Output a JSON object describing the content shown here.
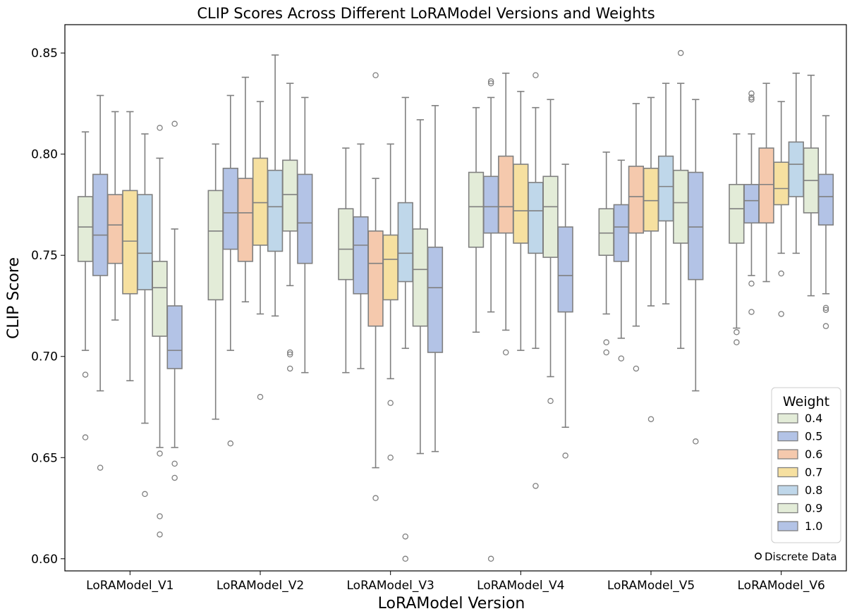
{
  "chart_data": {
    "type": "boxplot",
    "title": "CLIP Scores Across Different LoRAModel Versions and Weights",
    "xlabel": "LoRAModel Version",
    "ylabel": "CLIP Score",
    "ylim": [
      0.594,
      0.864
    ],
    "yticks": [
      0.6,
      0.65,
      0.7,
      0.75,
      0.8,
      0.85
    ],
    "ytick_labels": [
      "0.60",
      "0.65",
      "0.70",
      "0.75",
      "0.80",
      "0.85"
    ],
    "categories": [
      "LoRAModel_V1",
      "LoRAModel_V2",
      "LoRAModel_V3",
      "LoRAModel_V4",
      "LoRAModel_V5",
      "LoRAModel_V6"
    ],
    "legend": {
      "title": "Weight",
      "position": "bottom-right",
      "labels": [
        "0.4",
        "0.5",
        "0.6",
        "0.7",
        "0.8",
        "0.9",
        "1.0"
      ],
      "colors": [
        "#e3ecd8",
        "#b3c3e6",
        "#f5c9ad",
        "#f6e0a0",
        "#bfd7ea",
        "#e3ecd8",
        "#b3c3e6"
      ]
    },
    "annotation": "Discrete Data",
    "edge_color": "#808080",
    "series": [
      {
        "name": "0.4",
        "boxes": [
          {
            "whislo": 0.703,
            "q1": 0.747,
            "med": 0.764,
            "q3": 0.779,
            "whishi": 0.811,
            "fliers": [
              0.691,
              0.66
            ]
          },
          {
            "whislo": 0.669,
            "q1": 0.728,
            "med": 0.762,
            "q3": 0.782,
            "whishi": 0.805,
            "fliers": []
          },
          {
            "whislo": 0.692,
            "q1": 0.738,
            "med": 0.753,
            "q3": 0.773,
            "whishi": 0.803,
            "fliers": []
          },
          {
            "whislo": 0.712,
            "q1": 0.754,
            "med": 0.774,
            "q3": 0.791,
            "whishi": 0.823,
            "fliers": []
          },
          {
            "whislo": 0.721,
            "q1": 0.75,
            "med": 0.761,
            "q3": 0.773,
            "whishi": 0.801,
            "fliers": [
              0.707,
              0.702
            ]
          },
          {
            "whislo": 0.714,
            "q1": 0.756,
            "med": 0.773,
            "q3": 0.785,
            "whishi": 0.81,
            "fliers": [
              0.712,
              0.707
            ]
          }
        ]
      },
      {
        "name": "0.5",
        "boxes": [
          {
            "whislo": 0.683,
            "q1": 0.74,
            "med": 0.76,
            "q3": 0.79,
            "whishi": 0.829,
            "fliers": [
              0.645
            ]
          },
          {
            "whislo": 0.703,
            "q1": 0.753,
            "med": 0.771,
            "q3": 0.793,
            "whishi": 0.829,
            "fliers": [
              0.657
            ]
          },
          {
            "whislo": 0.694,
            "q1": 0.731,
            "med": 0.755,
            "q3": 0.769,
            "whishi": 0.805,
            "fliers": []
          },
          {
            "whislo": 0.722,
            "q1": 0.761,
            "med": 0.774,
            "q3": 0.789,
            "whishi": 0.828,
            "fliers": [
              0.836,
              0.835,
              0.6
            ]
          },
          {
            "whislo": 0.709,
            "q1": 0.747,
            "med": 0.764,
            "q3": 0.775,
            "whishi": 0.797,
            "fliers": [
              0.699
            ]
          },
          {
            "whislo": 0.74,
            "q1": 0.766,
            "med": 0.777,
            "q3": 0.785,
            "whishi": 0.81,
            "fliers": [
              0.83,
              0.828,
              0.827,
              0.736,
              0.722
            ]
          }
        ]
      },
      {
        "name": "0.6",
        "boxes": [
          {
            "whislo": 0.718,
            "q1": 0.746,
            "med": 0.765,
            "q3": 0.78,
            "whishi": 0.821,
            "fliers": []
          },
          {
            "whislo": 0.727,
            "q1": 0.747,
            "med": 0.771,
            "q3": 0.788,
            "whishi": 0.838,
            "fliers": []
          },
          {
            "whislo": 0.645,
            "q1": 0.715,
            "med": 0.746,
            "q3": 0.762,
            "whishi": 0.788,
            "fliers": [
              0.839,
              0.63
            ]
          },
          {
            "whislo": 0.713,
            "q1": 0.761,
            "med": 0.774,
            "q3": 0.799,
            "whishi": 0.84,
            "fliers": [
              0.702
            ]
          },
          {
            "whislo": 0.715,
            "q1": 0.761,
            "med": 0.779,
            "q3": 0.794,
            "whishi": 0.825,
            "fliers": [
              0.694
            ]
          },
          {
            "whislo": 0.737,
            "q1": 0.766,
            "med": 0.785,
            "q3": 0.803,
            "whishi": 0.835,
            "fliers": []
          }
        ]
      },
      {
        "name": "0.7",
        "boxes": [
          {
            "whislo": 0.688,
            "q1": 0.731,
            "med": 0.757,
            "q3": 0.782,
            "whishi": 0.821,
            "fliers": []
          },
          {
            "whislo": 0.721,
            "q1": 0.755,
            "med": 0.776,
            "q3": 0.798,
            "whishi": 0.826,
            "fliers": [
              0.68
            ]
          },
          {
            "whislo": 0.689,
            "q1": 0.728,
            "med": 0.748,
            "q3": 0.76,
            "whishi": 0.805,
            "fliers": [
              0.677,
              0.65
            ]
          },
          {
            "whislo": 0.703,
            "q1": 0.756,
            "med": 0.772,
            "q3": 0.795,
            "whishi": 0.831,
            "fliers": []
          },
          {
            "whislo": 0.725,
            "q1": 0.762,
            "med": 0.777,
            "q3": 0.793,
            "whishi": 0.828,
            "fliers": [
              0.669
            ]
          },
          {
            "whislo": 0.751,
            "q1": 0.775,
            "med": 0.783,
            "q3": 0.796,
            "whishi": 0.826,
            "fliers": [
              0.741,
              0.721
            ]
          }
        ]
      },
      {
        "name": "0.8",
        "boxes": [
          {
            "whislo": 0.667,
            "q1": 0.733,
            "med": 0.751,
            "q3": 0.78,
            "whishi": 0.81,
            "fliers": [
              0.632
            ]
          },
          {
            "whislo": 0.72,
            "q1": 0.752,
            "med": 0.774,
            "q3": 0.792,
            "whishi": 0.849,
            "fliers": []
          },
          {
            "whislo": 0.704,
            "q1": 0.737,
            "med": 0.751,
            "q3": 0.776,
            "whishi": 0.828,
            "fliers": [
              0.611,
              0.6
            ]
          },
          {
            "whislo": 0.704,
            "q1": 0.751,
            "med": 0.772,
            "q3": 0.786,
            "whishi": 0.823,
            "fliers": [
              0.839,
              0.636
            ]
          },
          {
            "whislo": 0.726,
            "q1": 0.767,
            "med": 0.784,
            "q3": 0.799,
            "whishi": 0.835,
            "fliers": []
          },
          {
            "whislo": 0.751,
            "q1": 0.779,
            "med": 0.795,
            "q3": 0.806,
            "whishi": 0.84,
            "fliers": []
          }
        ]
      },
      {
        "name": "0.9",
        "boxes": [
          {
            "whislo": 0.655,
            "q1": 0.71,
            "med": 0.734,
            "q3": 0.747,
            "whishi": 0.798,
            "fliers": [
              0.813,
              0.652,
              0.621,
              0.612
            ]
          },
          {
            "whislo": 0.735,
            "q1": 0.762,
            "med": 0.78,
            "q3": 0.797,
            "whishi": 0.835,
            "fliers": [
              0.702,
              0.701,
              0.694
            ]
          },
          {
            "whislo": 0.652,
            "q1": 0.715,
            "med": 0.743,
            "q3": 0.763,
            "whishi": 0.817,
            "fliers": []
          },
          {
            "whislo": 0.69,
            "q1": 0.749,
            "med": 0.774,
            "q3": 0.789,
            "whishi": 0.827,
            "fliers": [
              0.678
            ]
          },
          {
            "whislo": 0.704,
            "q1": 0.756,
            "med": 0.776,
            "q3": 0.792,
            "whishi": 0.835,
            "fliers": [
              0.85
            ]
          },
          {
            "whislo": 0.73,
            "q1": 0.771,
            "med": 0.787,
            "q3": 0.803,
            "whishi": 0.839,
            "fliers": []
          }
        ]
      },
      {
        "name": "1.0",
        "boxes": [
          {
            "whislo": 0.655,
            "q1": 0.694,
            "med": 0.703,
            "q3": 0.725,
            "whishi": 0.763,
            "fliers": [
              0.815,
              0.647,
              0.64
            ]
          },
          {
            "whislo": 0.692,
            "q1": 0.746,
            "med": 0.766,
            "q3": 0.79,
            "whishi": 0.828,
            "fliers": []
          },
          {
            "whislo": 0.653,
            "q1": 0.702,
            "med": 0.734,
            "q3": 0.754,
            "whishi": 0.824,
            "fliers": []
          },
          {
            "whislo": 0.665,
            "q1": 0.722,
            "med": 0.74,
            "q3": 0.764,
            "whishi": 0.795,
            "fliers": [
              0.651
            ]
          },
          {
            "whislo": 0.683,
            "q1": 0.738,
            "med": 0.764,
            "q3": 0.791,
            "whishi": 0.827,
            "fliers": [
              0.658
            ]
          },
          {
            "whislo": 0.731,
            "q1": 0.765,
            "med": 0.779,
            "q3": 0.79,
            "whishi": 0.819,
            "fliers": [
              0.724,
              0.723,
              0.715
            ]
          }
        ]
      }
    ]
  }
}
